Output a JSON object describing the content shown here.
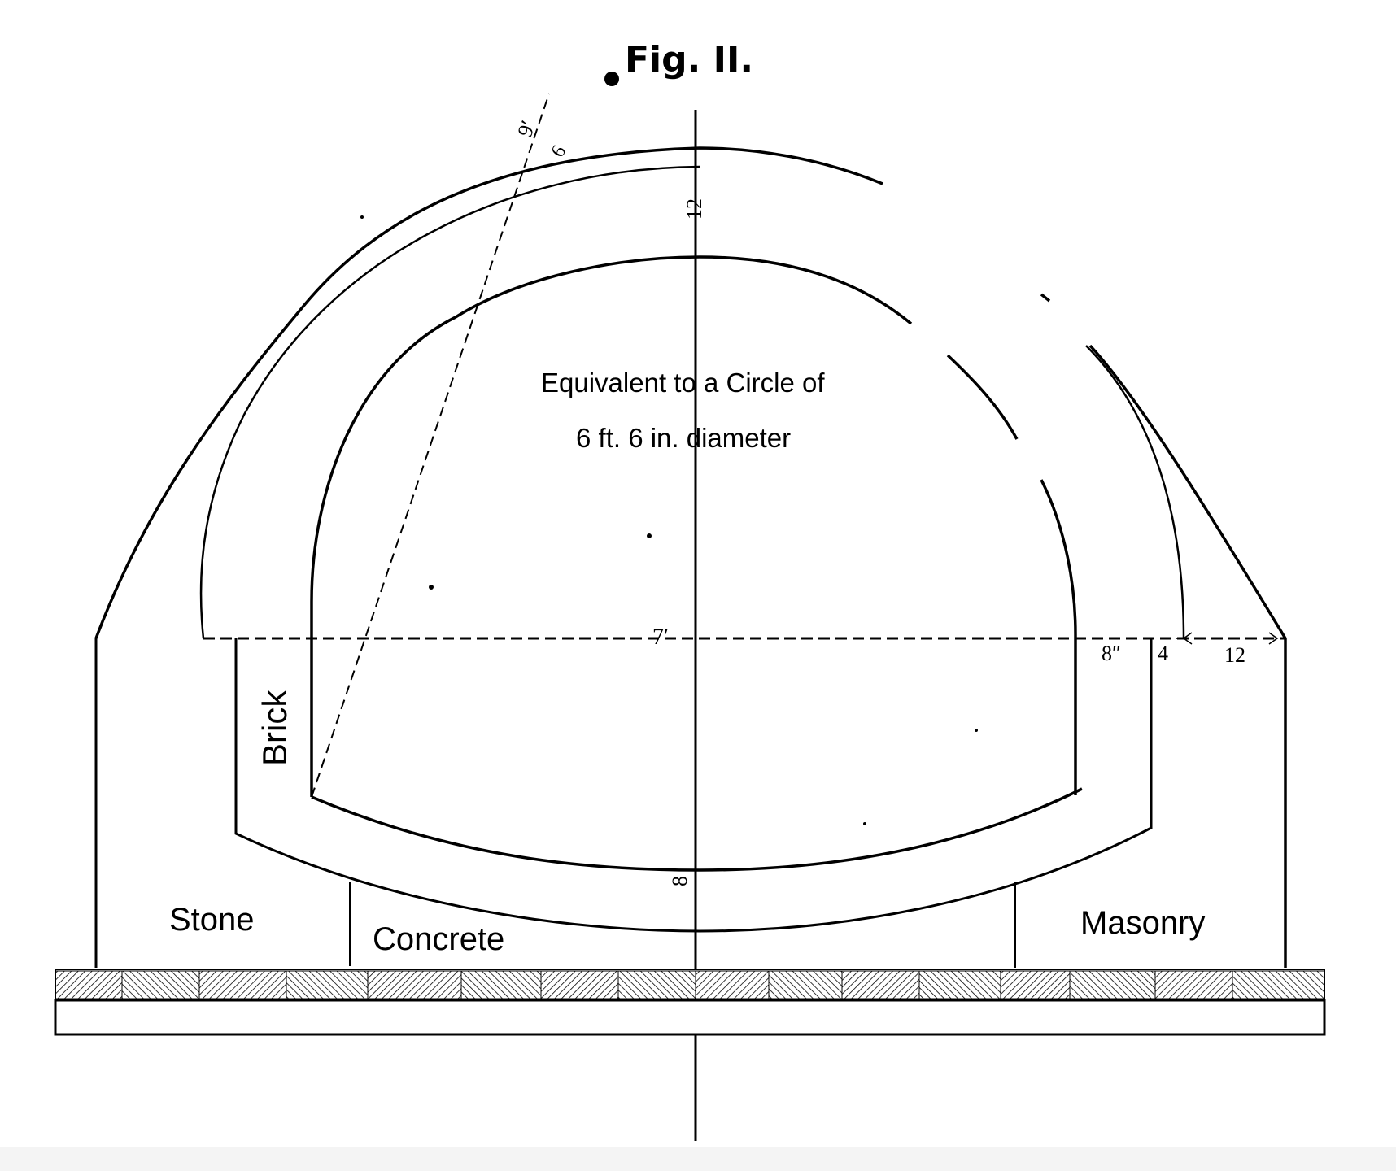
{
  "figure": {
    "title": "Fig. II.",
    "caption_line1": "Equivalent to a Circle of",
    "caption_line2": "6 ft. 6 in. diameter"
  },
  "labels": {
    "brick": "Brick",
    "stone": "Stone",
    "concrete": "Concrete",
    "masonry": "Masonry"
  },
  "dimensions": {
    "crown_height": "12",
    "radius": "9′",
    "radius_inner": "6",
    "span": "7′",
    "invert": "8",
    "brick_thickness": "8″",
    "gap": "4",
    "masonry_thickness": "12"
  }
}
